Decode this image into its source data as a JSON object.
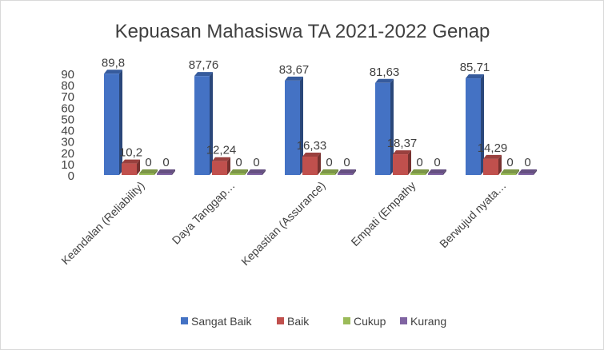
{
  "chart_data": {
    "type": "bar",
    "style": "3d-clustered-column",
    "title": "Kepuasan Mahasiswa TA 2021-2022 Genap",
    "categories": [
      "Keandalan (Reliability)",
      "Daya Tanggap…",
      "Kepastian (Assurance)",
      "Empati (Empathy",
      "Berwujud nyata…"
    ],
    "series": [
      {
        "name": "Sangat Baik",
        "color": "#4472c4",
        "values": [
          89.8,
          87.76,
          83.67,
          81.63,
          85.71
        ],
        "labels": [
          "89,8",
          "87,76",
          "83,67",
          "81,63",
          "85,71"
        ]
      },
      {
        "name": "Baik",
        "color": "#c0504d",
        "values": [
          10.2,
          12.24,
          16.33,
          18.37,
          14.29
        ],
        "labels": [
          "10,2",
          "12,24",
          "16,33",
          "18,37",
          "14,29"
        ]
      },
      {
        "name": "Cukup",
        "color": "#9bbb59",
        "values": [
          0,
          0,
          0,
          0,
          0
        ],
        "labels": [
          "0",
          "0",
          "0",
          "0",
          "0"
        ]
      },
      {
        "name": "Kurang",
        "color": "#8064a2",
        "values": [
          0,
          0,
          0,
          0,
          0
        ],
        "labels": [
          "0",
          "0",
          "0",
          "0",
          "0"
        ]
      }
    ],
    "yticks": [
      "0",
      "10",
      "20",
      "30",
      "40",
      "50",
      "60",
      "70",
      "80",
      "90"
    ],
    "ylim": [
      0,
      90
    ],
    "grid": false,
    "legend": "bottom"
  }
}
